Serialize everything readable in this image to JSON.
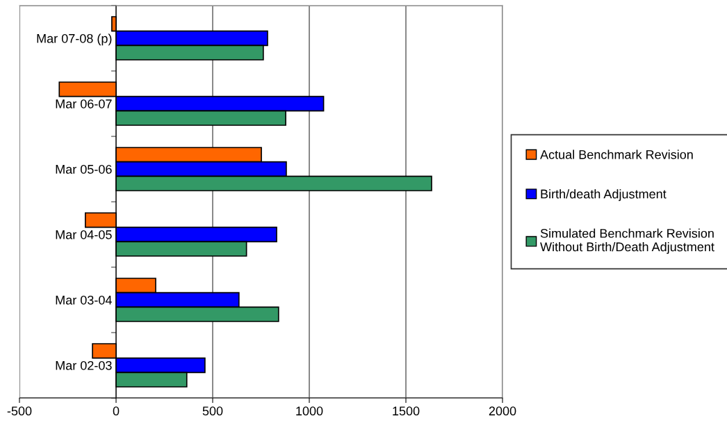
{
  "chart_data": {
    "type": "bar",
    "orientation": "horizontal",
    "categories": [
      "Mar 07-08 (p)",
      "Mar 06-07",
      "Mar 05-06",
      "Mar 04-05",
      "Mar 03-04",
      "Mar 02-03"
    ],
    "series": [
      {
        "name": "Actual Benchmark Revision",
        "color": "#ff6600",
        "values": [
          -22,
          -294,
          752,
          -159,
          205,
          -122
        ]
      },
      {
        "name": "Birth/death Adjustment",
        "color": "#0000ff",
        "values": [
          784,
          1074,
          881,
          831,
          636,
          460
        ]
      },
      {
        "name": "Simulated Benchmark Revision\nWithout Birth/Death Adjustment",
        "color": "#339966",
        "values": [
          762,
          878,
          1633,
          675,
          841,
          366
        ]
      }
    ],
    "xlim": [
      -500,
      2000
    ],
    "xticks": [
      -500,
      0,
      500,
      1000,
      1500,
      2000
    ],
    "grid": "x",
    "legend": "right"
  }
}
